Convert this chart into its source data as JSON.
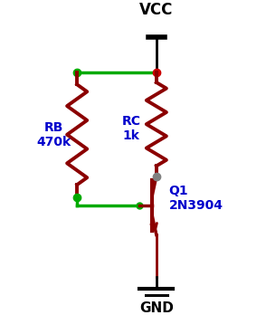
{
  "bg_color": "#ffffff",
  "wire_color": "#00aa00",
  "resistor_color": "#8b0000",
  "transistor_color": "#8b0000",
  "dot_color": "#cc0000",
  "junction_dot_color": "#808080",
  "text_color": "#0000cc",
  "gnd_color": "#000000",
  "vcc_color": "#000000",
  "vcc_label": "VCC",
  "gnd_label": "GND",
  "rb_label": "RB\n470k",
  "rc_label": "RC\n1k",
  "q1_label": "Q1\n2N3904"
}
